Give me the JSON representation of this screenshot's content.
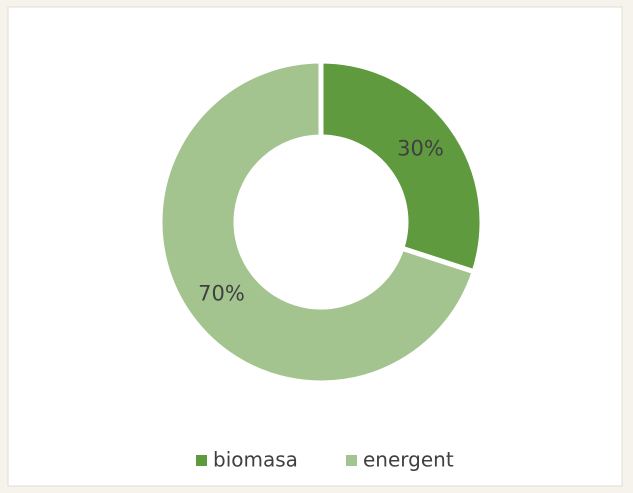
{
  "chart_data": {
    "type": "donut",
    "categories": [
      "biomasa",
      "energent"
    ],
    "values": [
      30,
      70
    ],
    "value_labels": [
      "30%",
      "70%"
    ],
    "colors": [
      "#5f9a3f",
      "#a3c48f"
    ]
  }
}
